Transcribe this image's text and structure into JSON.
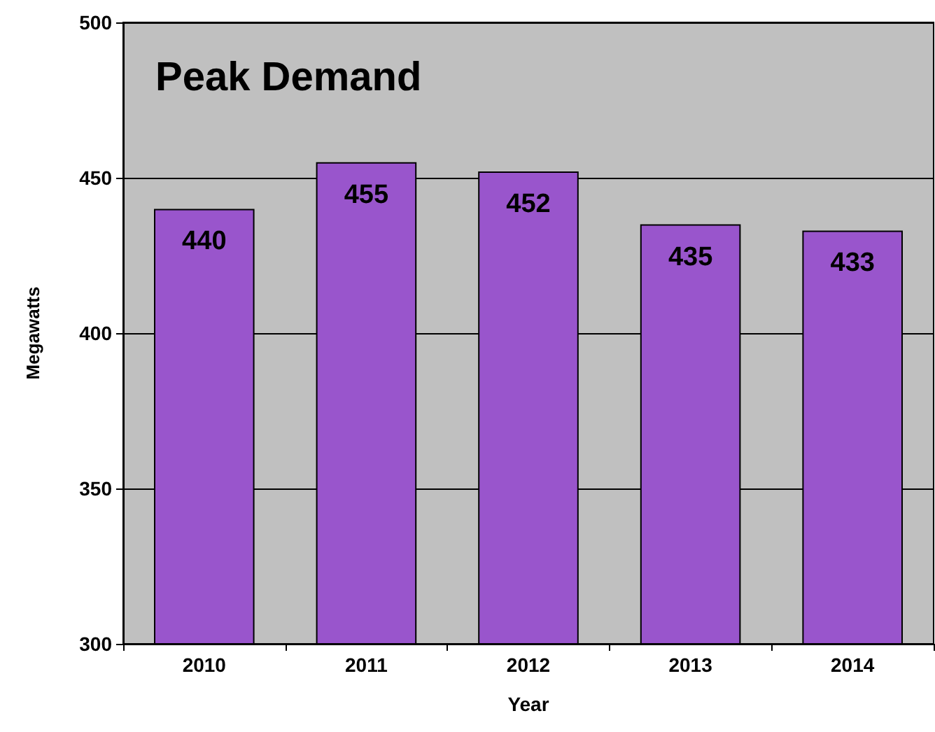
{
  "chart_data": {
    "type": "bar",
    "title": "Peak Demand",
    "xlabel": "Year",
    "ylabel": "Megawatts",
    "categories": [
      "2010",
      "2011",
      "2012",
      "2013",
      "2014"
    ],
    "values": [
      440,
      455,
      452,
      435,
      433
    ],
    "color": "#9955cc",
    "ylim": [
      300,
      500
    ],
    "yticks": [
      300,
      350,
      400,
      450,
      500
    ],
    "grid": "y",
    "data_labels": true
  }
}
